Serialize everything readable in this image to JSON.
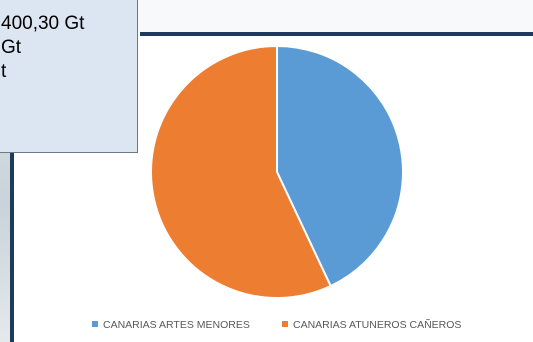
{
  "info_box": {
    "lines": [
      "400,30 Gt",
      "Gt",
      "t"
    ]
  },
  "chart_data": {
    "type": "pie",
    "title": "",
    "slices": [
      {
        "name": "CANARIAS ARTES MENORES",
        "value": 43,
        "color": "#5b9bd5"
      },
      {
        "name": "CANARIAS ATUNEROS CAÑEROS",
        "value": 57,
        "color": "#ed7d31"
      }
    ],
    "legend": "bottom"
  }
}
